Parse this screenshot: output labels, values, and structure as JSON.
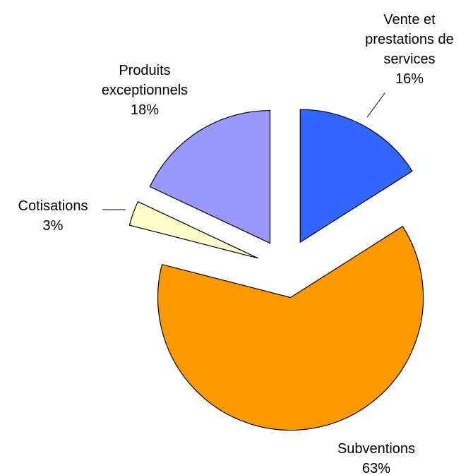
{
  "chart_data": {
    "type": "pie",
    "categories": [
      "Vente et prestations de services",
      "Subventions",
      "Cotisations",
      "Produits exceptionnels"
    ],
    "values": [
      16,
      63,
      3,
      18
    ],
    "value_labels": [
      "16%",
      "63%",
      "3%",
      "18%"
    ],
    "colors": [
      "#3366ff",
      "#ff9900",
      "#ffffcc",
      "#9999ff"
    ]
  }
}
